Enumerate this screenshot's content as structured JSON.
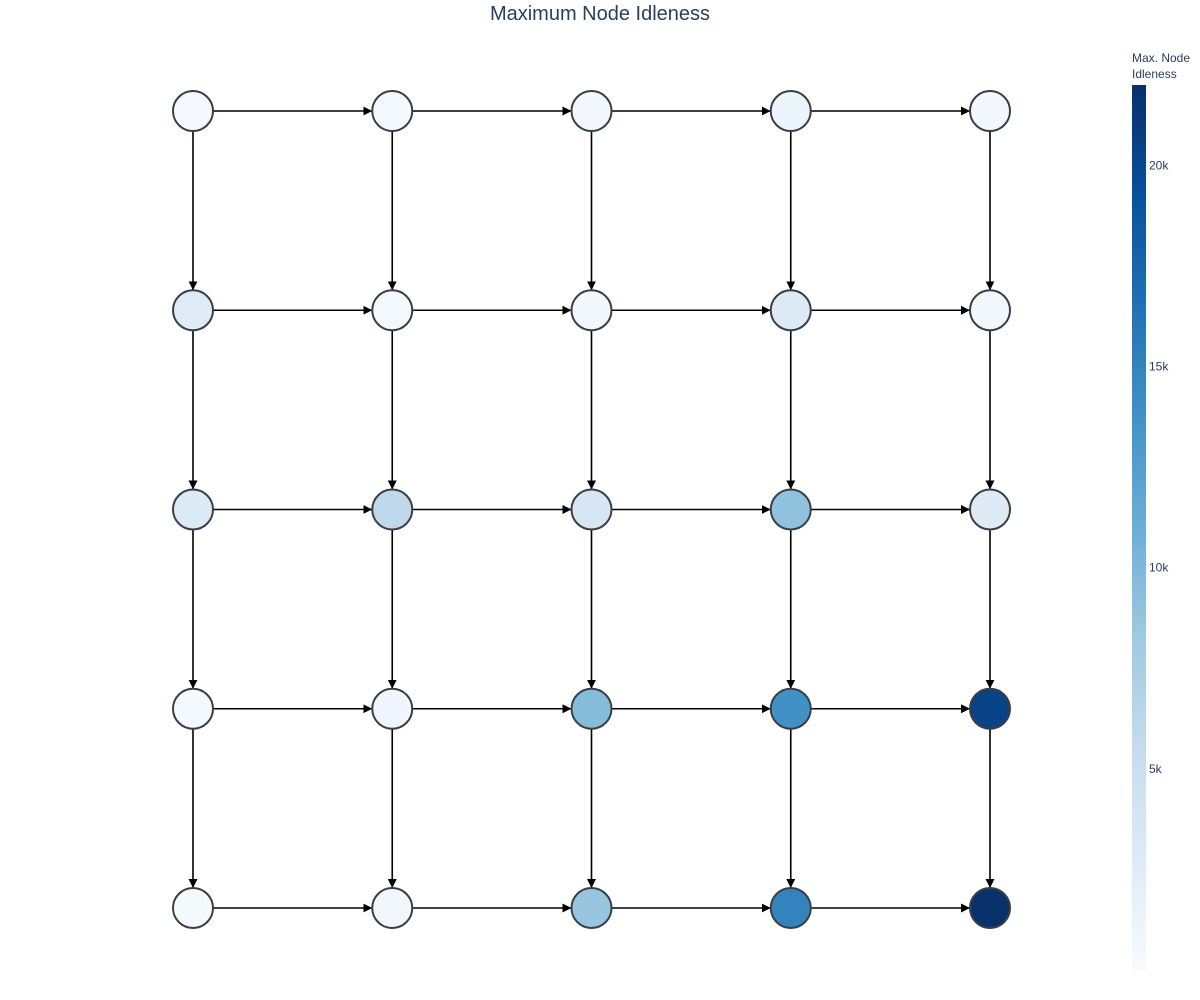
{
  "chart_data": {
    "type": "network-heatmap",
    "title": "Maximum Node Idleness",
    "colorbar": {
      "title_lines": [
        "Max. Node",
        "Idleness"
      ],
      "min": 0,
      "max": 22000,
      "ticks": [
        {
          "value": 5000,
          "label": "5k"
        },
        {
          "value": 10000,
          "label": "10k"
        },
        {
          "value": 15000,
          "label": "15k"
        },
        {
          "value": 20000,
          "label": "20k"
        }
      ],
      "colorscale": [
        "#f7fbff",
        "#deebf7",
        "#c6dbef",
        "#9ecae1",
        "#6baed6",
        "#4292c6",
        "#2171b5",
        "#08519c",
        "#08306b"
      ]
    },
    "grid": {
      "columns": 5,
      "rows": 5
    },
    "nodes": [
      {
        "row": 0,
        "col": 0,
        "value": 400
      },
      {
        "row": 0,
        "col": 1,
        "value": 400
      },
      {
        "row": 0,
        "col": 2,
        "value": 500
      },
      {
        "row": 0,
        "col": 3,
        "value": 1200
      },
      {
        "row": 0,
        "col": 4,
        "value": 500
      },
      {
        "row": 1,
        "col": 0,
        "value": 2600
      },
      {
        "row": 1,
        "col": 1,
        "value": 400
      },
      {
        "row": 1,
        "col": 2,
        "value": 500
      },
      {
        "row": 1,
        "col": 3,
        "value": 3000
      },
      {
        "row": 1,
        "col": 4,
        "value": 500
      },
      {
        "row": 2,
        "col": 0,
        "value": 3000
      },
      {
        "row": 2,
        "col": 1,
        "value": 6000
      },
      {
        "row": 2,
        "col": 2,
        "value": 3600
      },
      {
        "row": 2,
        "col": 3,
        "value": 9000
      },
      {
        "row": 2,
        "col": 4,
        "value": 2800
      },
      {
        "row": 3,
        "col": 0,
        "value": 400
      },
      {
        "row": 3,
        "col": 1,
        "value": 800
      },
      {
        "row": 3,
        "col": 2,
        "value": 9600
      },
      {
        "row": 3,
        "col": 3,
        "value": 13800
      },
      {
        "row": 3,
        "col": 4,
        "value": 20400
      },
      {
        "row": 4,
        "col": 0,
        "value": 300
      },
      {
        "row": 4,
        "col": 1,
        "value": 700
      },
      {
        "row": 4,
        "col": 2,
        "value": 8600
      },
      {
        "row": 4,
        "col": 3,
        "value": 15000
      },
      {
        "row": 4,
        "col": 4,
        "value": 22000
      }
    ],
    "edges": "bidirectional links between horizontally and vertically adjacent nodes",
    "legend": "colorbar on right"
  }
}
